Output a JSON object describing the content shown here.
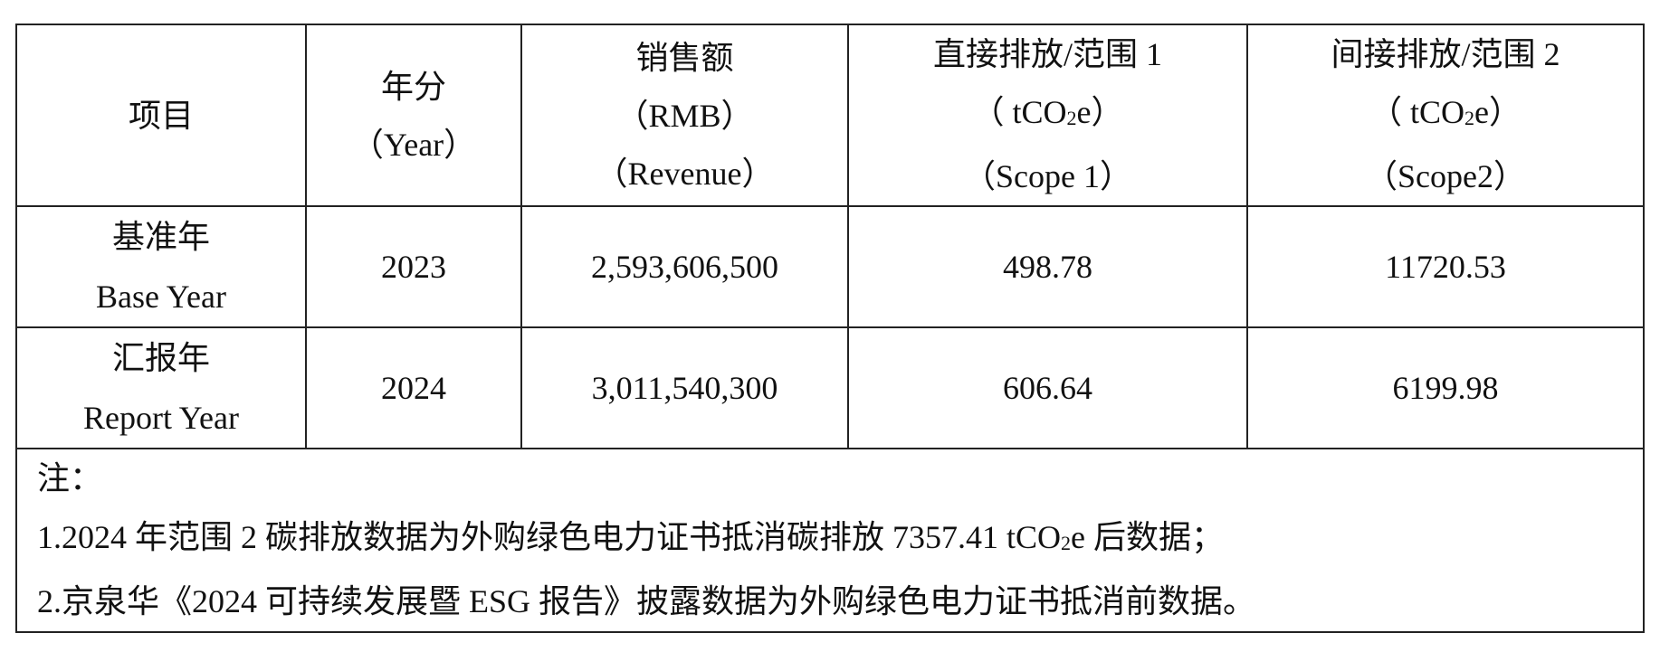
{
  "table": {
    "headers": [
      {
        "lines": [
          "项目"
        ]
      },
      {
        "lines": [
          "年分",
          "（Year）"
        ]
      },
      {
        "lines": [
          "销售额",
          "（RMB）",
          "（Revenue）"
        ]
      },
      {
        "lines": [
          "直接排放/范围 1",
          "（ tCO",
          "2",
          "e）",
          "（Scope 1）"
        ]
      },
      {
        "lines": [
          "间接排放/范围 2",
          "（ tCO",
          "2",
          "e）",
          "（Scope2）"
        ]
      }
    ],
    "rows": [
      {
        "item_cn": "基准年",
        "item_en": "Base Year",
        "year": "2023",
        "revenue": "2,593,606,500",
        "scope1": "498.78",
        "scope2": "11720.53"
      },
      {
        "item_cn": "汇报年",
        "item_en": "Report Year",
        "year": "2024",
        "revenue": "3,011,540,300",
        "scope1": "606.64",
        "scope2": "6199.98"
      }
    ],
    "notes": {
      "title": "注：",
      "line1_a": "1.2024 年范围 2 碳排放数据为外购绿色电力证书抵消碳排放 7357.41 tCO",
      "line1_sub": "2",
      "line1_b": "e 后数据；",
      "line2": "2.京泉华《2024 可持续发展暨 ESG 报告》披露数据为外购绿色电力证书抵消前数据。"
    }
  }
}
